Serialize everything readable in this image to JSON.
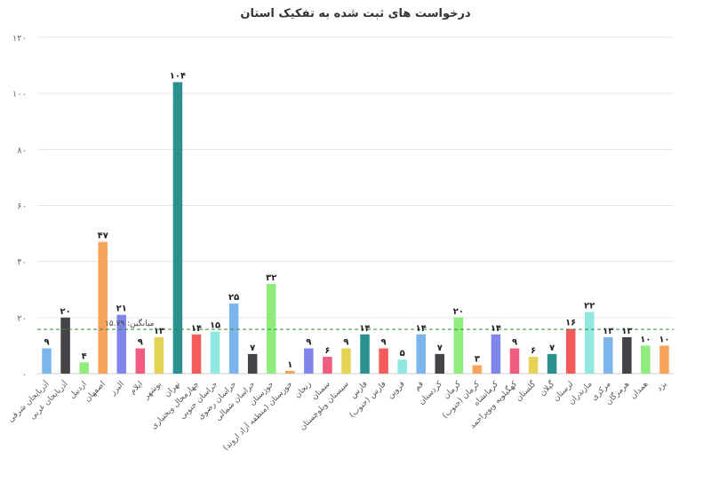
{
  "chart_data": {
    "type": "bar",
    "title": "درخواست های ثبت شده به تفکیک استان",
    "xlabel": "",
    "ylabel": "",
    "ylim": [
      0,
      120
    ],
    "yticks": [
      "۰",
      "۲۰",
      "۴۰",
      "۶۰",
      "۸۰",
      "۱۰۰",
      "۱۲۰"
    ],
    "grid": true,
    "legend": "none",
    "categories": [
      "آذربایجان شرقی",
      "آذربایجان غربی",
      "اردبیل",
      "اصفهان",
      "البرز",
      "ایلام",
      "بوشهر",
      "تهران",
      "چهارمحال وبختیاری",
      "خراسان جنوبی",
      "خراسان رضوی",
      "خراسان شمالی",
      "خوزستان",
      "خوزستان (منطقه آزاد اروند)",
      "زنجان",
      "سمنان",
      "سیستان وبلوچستان",
      "فارس",
      "فارس (جنوب)",
      "قزوین",
      "قم",
      "کردستان",
      "کرمان",
      "کرمان (جنوب)",
      "کرمانشاه",
      "کهگیلویه وبویراحمد",
      "گلستان",
      "گیلان",
      "لرستان",
      "مازندران",
      "مرکزی",
      "هرمزگان",
      "همدان",
      "یزد"
    ],
    "values": [
      9,
      20,
      4,
      47,
      21,
      9,
      13,
      104,
      14,
      15,
      25,
      7,
      32,
      1,
      9,
      6,
      9,
      14,
      9,
      5,
      14,
      7,
      20,
      3,
      14,
      9,
      6,
      7,
      16,
      22,
      13,
      13,
      10,
      10
    ],
    "value_labels": [
      "۹",
      "۲۰",
      "۴",
      "۴۷",
      "۲۱",
      "۹",
      "۱۳",
      "۱۰۴",
      "۱۴",
      "۱۵",
      "۲۵",
      "۷",
      "۳۲",
      "۱",
      "۹",
      "۶",
      "۹",
      "۱۴",
      "۹",
      "۵",
      "۱۴",
      "۷",
      "۲۰",
      "۳",
      "۱۴",
      "۹",
      "۶",
      "۷",
      "۱۶",
      "۲۲",
      "۱۳",
      "۱۳",
      "۱۰",
      "۱۰"
    ],
    "colors": [
      "#7cb5ec",
      "#434348",
      "#90ed7d",
      "#f7a35c",
      "#8085e9",
      "#f15c80",
      "#e4d354",
      "#2b908f",
      "#f45b5b",
      "#91e8e1"
    ],
    "average_line": {
      "value": 15.79,
      "label": "میانگین: ۱۵.۷۹",
      "color": "#2e8b3c"
    }
  }
}
